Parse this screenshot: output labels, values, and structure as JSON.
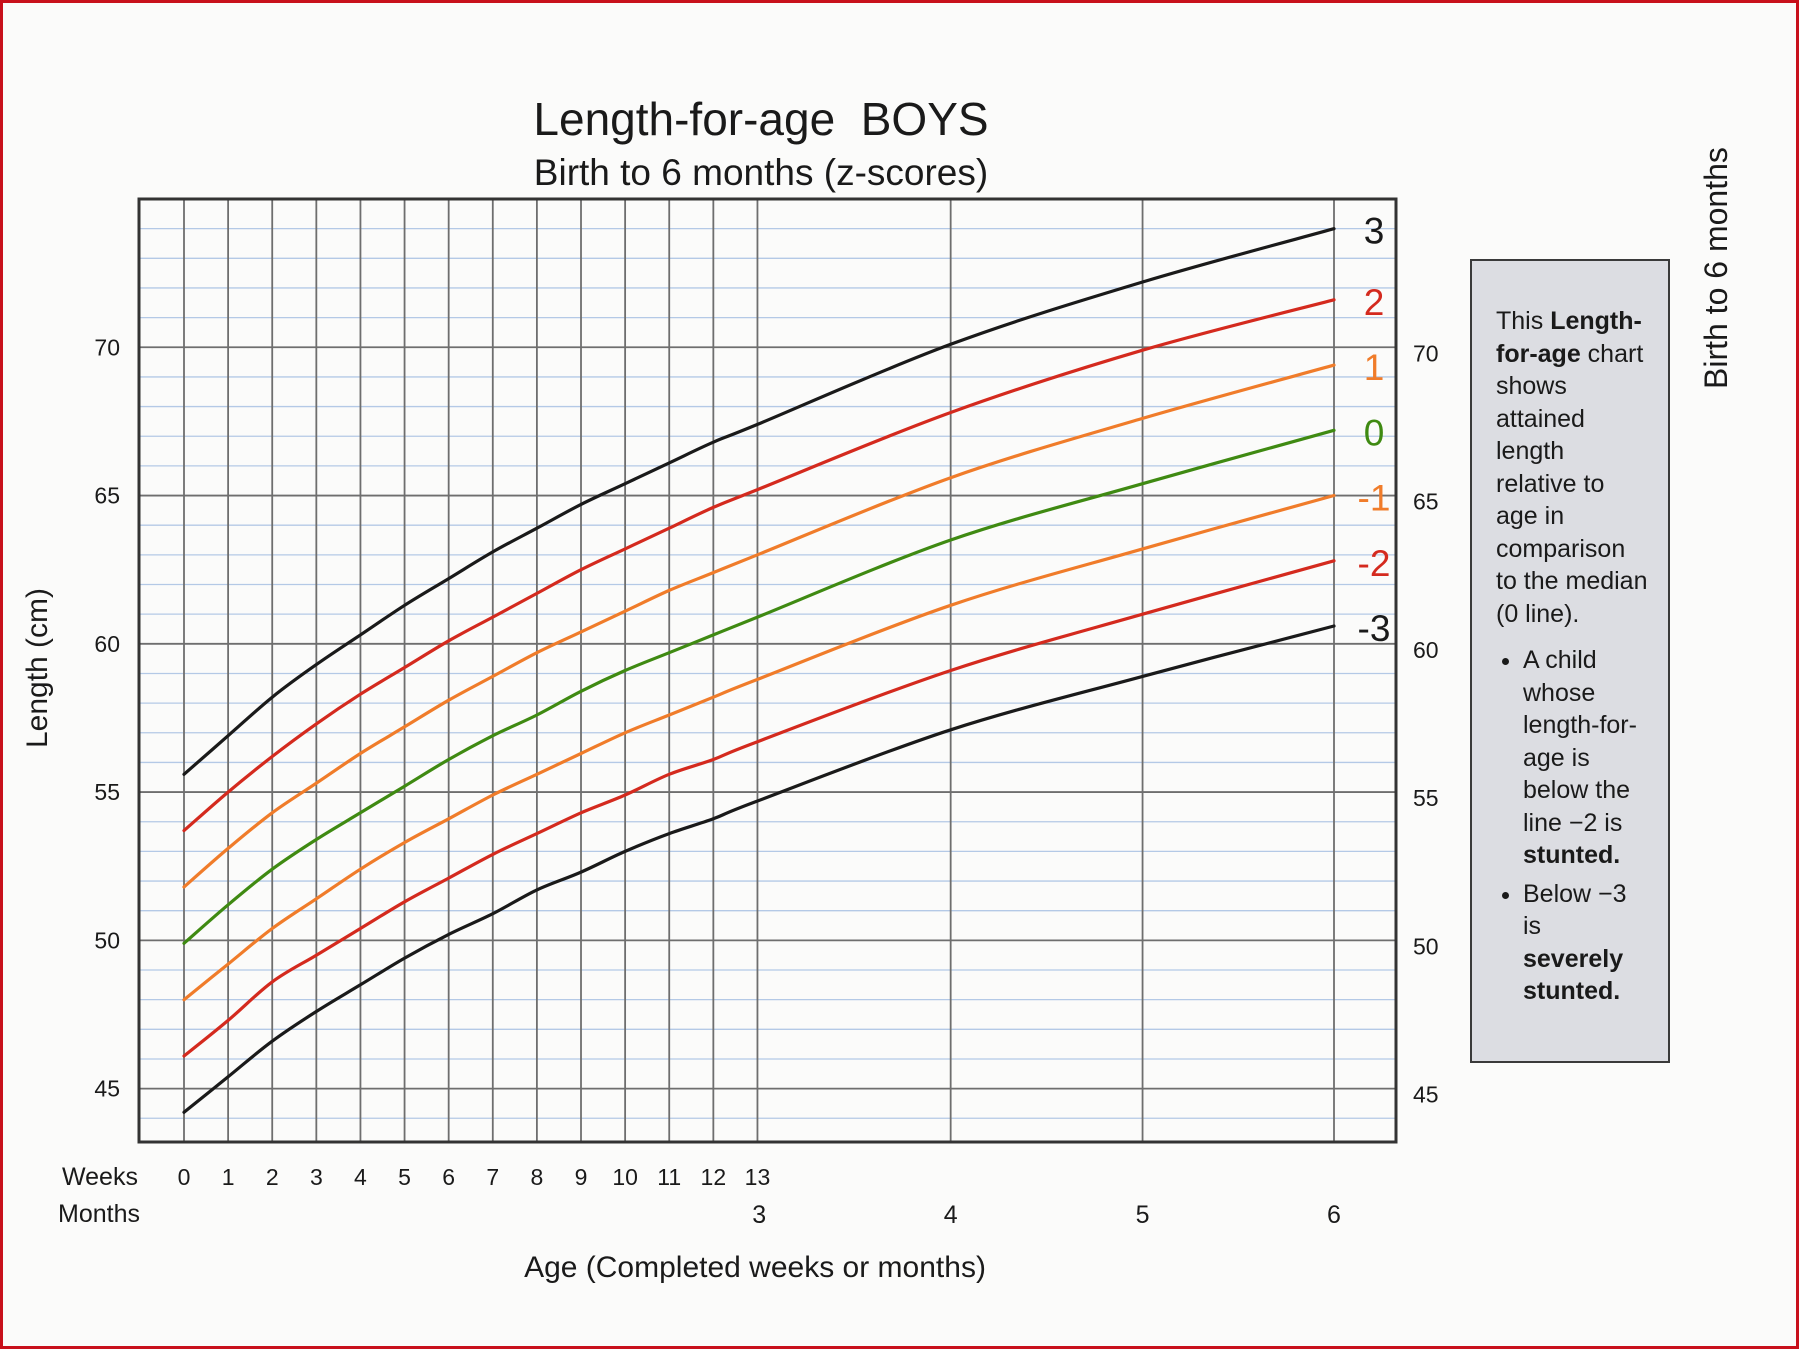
{
  "side_title": "Birth to 6 months",
  "note": {
    "intro_pre": "This ",
    "intro_bold": "Length-for-age",
    "intro_post": " chart shows attained length relative to age in comparison to the median (0 line).",
    "bullet1_pre": "A child whose length-for-age is below the line −2 is ",
    "bullet1_bold": "stunted.",
    "bullet2_pre": "Below −3 is ",
    "bullet2_bold": "severely stunted."
  },
  "chart_data": {
    "type": "line",
    "title": "Length-for-age  BOYS",
    "subtitle": "Birth to 6 months (z-scores)",
    "ylabel": "Length (cm)",
    "xlabel": "Age (Completed weeks or months)",
    "x_row_labels": [
      "Weeks",
      "Months"
    ],
    "x_unit": "weeks",
    "xlim": [
      0,
      26.07
    ],
    "ylim": [
      43.2,
      75
    ],
    "y_ticks": [
      45,
      50,
      55,
      60,
      65,
      70
    ],
    "y_minor_step": 1,
    "grid": true,
    "week_ticks": [
      "0",
      "1",
      "2",
      "3",
      "4",
      "5",
      "6",
      "7",
      "8",
      "9",
      "10",
      "11",
      "12",
      "13"
    ],
    "month_ticks": [
      {
        "label": "3",
        "week": 13.04
      },
      {
        "label": "4",
        "week": 17.38
      },
      {
        "label": "5",
        "week": 21.73
      },
      {
        "label": "6",
        "week": 26.07
      }
    ],
    "x": [
      0,
      1,
      2,
      3,
      4,
      5,
      6,
      7,
      8,
      9,
      10,
      11,
      12,
      13,
      17.38,
      21.73,
      26.07
    ],
    "series": [
      {
        "name": "3",
        "color": "#1a1a1a",
        "values": [
          55.6,
          56.9,
          58.2,
          59.3,
          60.3,
          61.3,
          62.2,
          63.1,
          63.9,
          64.7,
          65.4,
          66.1,
          66.8,
          67.4,
          70.1,
          72.2,
          74.0
        ]
      },
      {
        "name": "2",
        "color": "#d42a1e",
        "values": [
          53.7,
          55.0,
          56.2,
          57.3,
          58.3,
          59.2,
          60.1,
          60.9,
          61.7,
          62.5,
          63.2,
          63.9,
          64.6,
          65.2,
          67.8,
          69.9,
          71.6
        ]
      },
      {
        "name": "1",
        "color": "#f07c2a",
        "values": [
          51.8,
          53.1,
          54.3,
          55.3,
          56.3,
          57.2,
          58.1,
          58.9,
          59.7,
          60.4,
          61.1,
          61.8,
          62.4,
          63.0,
          65.6,
          67.6,
          69.4
        ]
      },
      {
        "name": "0",
        "color": "#3f8a12",
        "values": [
          49.9,
          51.2,
          52.4,
          53.4,
          54.3,
          55.2,
          56.1,
          56.9,
          57.6,
          58.4,
          59.1,
          59.7,
          60.3,
          60.9,
          63.5,
          65.4,
          67.2
        ]
      },
      {
        "name": "-1",
        "color": "#f07c2a",
        "values": [
          48.0,
          49.2,
          50.4,
          51.4,
          52.4,
          53.3,
          54.1,
          54.9,
          55.6,
          56.3,
          57.0,
          57.6,
          58.2,
          58.8,
          61.3,
          63.2,
          65.0
        ]
      },
      {
        "name": "-2",
        "color": "#d42a1e",
        "values": [
          46.1,
          47.3,
          48.6,
          49.5,
          50.4,
          51.3,
          52.1,
          52.9,
          53.6,
          54.3,
          54.9,
          55.6,
          56.1,
          56.7,
          59.1,
          61.0,
          62.8
        ]
      },
      {
        "name": "-3",
        "color": "#1a1a1a",
        "values": [
          44.2,
          45.4,
          46.6,
          47.6,
          48.5,
          49.4,
          50.2,
          50.9,
          51.7,
          52.3,
          53.0,
          53.6,
          54.1,
          54.7,
          57.1,
          58.9,
          60.6
        ]
      }
    ]
  }
}
